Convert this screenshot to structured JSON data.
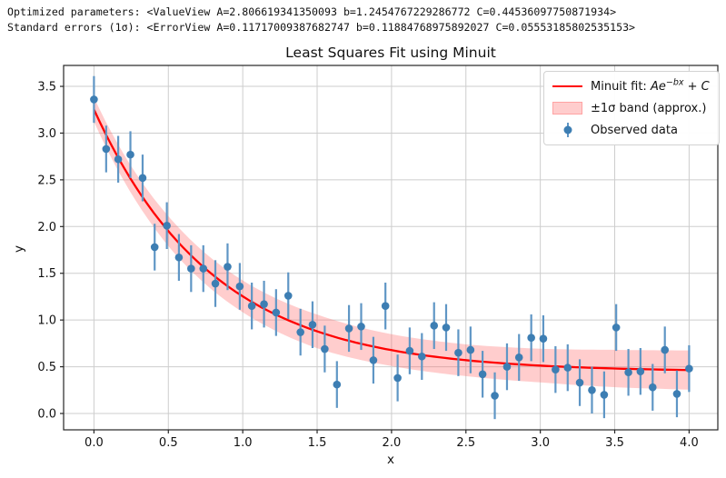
{
  "header": {
    "line1": "Optimized parameters: <ValueView A=2.806619341350093 b=1.2454767229286772 C=0.44536097750871934>",
    "line2": "Standard errors (1σ): <ErrorView A=0.11717009387682747 b=0.11884768975892027 C=0.05553185802535153>"
  },
  "legend": {
    "fit": {
      "prefix": "Minuit fit: ",
      "base": "Ae",
      "exponent": "−bx",
      "plus": " + ",
      "const": "C"
    },
    "band_label": "±1σ band (approx.)",
    "data_label": "Observed data"
  },
  "chart_data": {
    "type": "scatter",
    "title": "Least Squares Fit using Minuit",
    "xlabel": "x",
    "ylabel": "y",
    "xlim": [
      -0.204,
      4.193
    ],
    "ylim": [
      -0.175,
      3.724
    ],
    "x_ticks": [
      0.0,
      0.5,
      1.0,
      1.5,
      2.0,
      2.5,
      3.0,
      3.5,
      4.0
    ],
    "y_ticks": [
      0.0,
      0.5,
      1.0,
      1.5,
      2.0,
      2.5,
      3.0,
      3.5
    ],
    "grid": true,
    "legend_position": "upper right",
    "fit_params": {
      "A": 2.806619341350093,
      "b": 1.2454767229286772,
      "C": 0.44536097750871934
    },
    "fit_errors": {
      "A": 0.11717009387682747,
      "b": 0.11884768975892027,
      "C": 0.05553185802535153
    },
    "fit_range": [
      0.0,
      4.0
    ],
    "band": {
      "x": [
        0.0,
        0.5,
        1.0,
        1.5,
        2.0,
        2.5,
        3.0,
        3.5,
        4.0
      ],
      "half_width": [
        0.13,
        0.16,
        0.17,
        0.18,
        0.17,
        0.17,
        0.18,
        0.2,
        0.21
      ]
    },
    "observed": {
      "x": [
        0.0,
        0.082,
        0.163,
        0.245,
        0.327,
        0.408,
        0.49,
        0.571,
        0.653,
        0.735,
        0.816,
        0.898,
        0.98,
        1.061,
        1.143,
        1.224,
        1.306,
        1.388,
        1.469,
        1.551,
        1.633,
        1.714,
        1.796,
        1.878,
        1.959,
        2.041,
        2.122,
        2.204,
        2.286,
        2.367,
        2.449,
        2.531,
        2.612,
        2.694,
        2.776,
        2.857,
        2.939,
        3.02,
        3.102,
        3.184,
        3.265,
        3.347,
        3.429,
        3.51,
        3.592,
        3.673,
        3.755,
        3.837,
        3.918,
        4.0
      ],
      "y": [
        3.36,
        2.83,
        2.72,
        2.77,
        2.52,
        1.78,
        2.01,
        1.67,
        1.55,
        1.55,
        1.39,
        1.57,
        1.36,
        1.15,
        1.17,
        1.08,
        1.26,
        0.87,
        0.95,
        0.69,
        0.31,
        0.91,
        0.93,
        0.57,
        1.15,
        0.38,
        0.67,
        0.61,
        0.94,
        0.92,
        0.65,
        0.68,
        0.42,
        0.19,
        0.5,
        0.6,
        0.81,
        0.8,
        0.47,
        0.49,
        0.33,
        0.25,
        0.2,
        0.92,
        0.44,
        0.45,
        0.28,
        0.68,
        0.21,
        0.48
      ],
      "yerr": 0.25
    },
    "colors": {
      "fit_line": "#ff0000",
      "band_fill": "rgba(255,100,100,0.32)",
      "marker": "#3d7eb3",
      "error_bar": "#5f96c5",
      "grid": "#cdcdcd",
      "spine": "#262626",
      "text": "#111111"
    }
  }
}
